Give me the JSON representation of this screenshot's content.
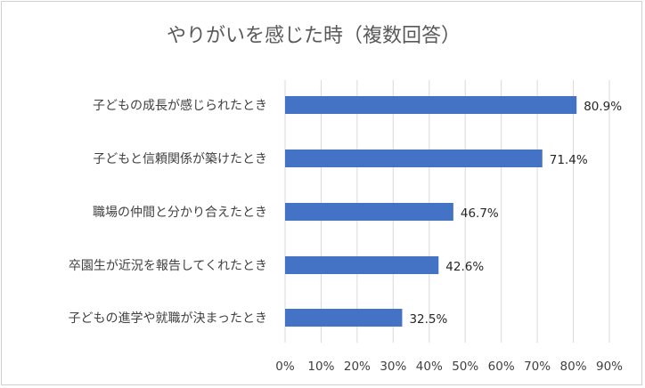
{
  "chart_data": {
    "type": "bar",
    "orientation": "horizontal",
    "title": "やりがいを感じた時（複数回答）",
    "categories": [
      "子どもの成長が感じられたとき",
      "子どもと信頼関係が築けたとき",
      "職場の仲間と分かり合えたとき",
      "卒園生が近況を報告してくれたとき",
      "子どもの進学や就職が決まったとき"
    ],
    "values": [
      80.9,
      71.4,
      46.7,
      42.6,
      32.5
    ],
    "data_labels": [
      "80.9%",
      "71.4%",
      "46.7%",
      "42.6%",
      "32.5%"
    ],
    "xlim": [
      0,
      90
    ],
    "x_ticks": [
      "0%",
      "10%",
      "20%",
      "30%",
      "40%",
      "50%",
      "60%",
      "70%",
      "80%",
      "90%"
    ],
    "grid": true,
    "bar_color": "#4472C4",
    "grid_color": "#d9d9d9"
  }
}
